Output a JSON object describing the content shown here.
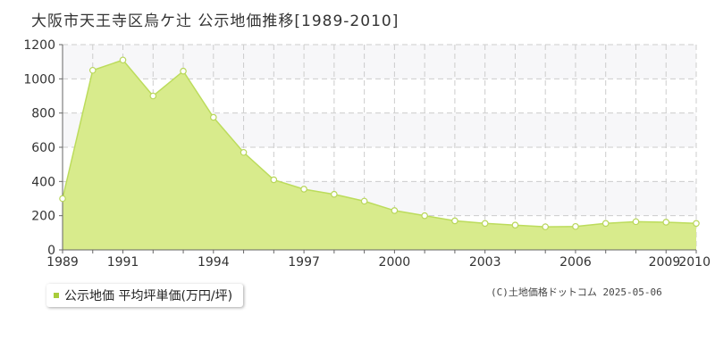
{
  "chart_data": {
    "type": "area",
    "title": "大阪市天王寺区烏ケ辻 公示地価推移[1989-2010]",
    "xlabel": "",
    "ylabel": "",
    "x": [
      1989,
      1990,
      1991,
      1992,
      1993,
      1994,
      1995,
      1996,
      1997,
      1998,
      1999,
      2000,
      2001,
      2002,
      2003,
      2004,
      2005,
      2006,
      2007,
      2008,
      2009,
      2010
    ],
    "x_tick_labels": [
      "1989",
      "1991",
      "1994",
      "1997",
      "2000",
      "2003",
      "2006",
      "2009",
      "2010"
    ],
    "x_tick_values": [
      1989,
      1991,
      1994,
      1997,
      2000,
      2003,
      2006,
      2009,
      2010
    ],
    "series": [
      {
        "name": "公示地価 平均坪単価(万円/坪)",
        "values": [
          300,
          1050,
          1110,
          900,
          1045,
          775,
          570,
          410,
          355,
          325,
          285,
          230,
          200,
          170,
          155,
          145,
          135,
          137,
          155,
          165,
          162,
          155
        ]
      }
    ],
    "ylim": [
      0,
      1200
    ],
    "y_ticks": [
      0,
      200,
      400,
      600,
      800,
      1000,
      1200
    ],
    "grid": true,
    "legend_position": "bottom-left"
  },
  "legend": {
    "label": "公示地価 平均坪単価(万円/坪)"
  },
  "credit": "(C)土地価格ドットコム 2025-05-06",
  "colors": {
    "area_fill": "#d8eb8c",
    "line": "#bcdc5c",
    "marker_stroke": "#b8d65a",
    "legend_swatch": "#a8cc3a",
    "band": "#f7f7f9",
    "grid": "#cccccc"
  }
}
